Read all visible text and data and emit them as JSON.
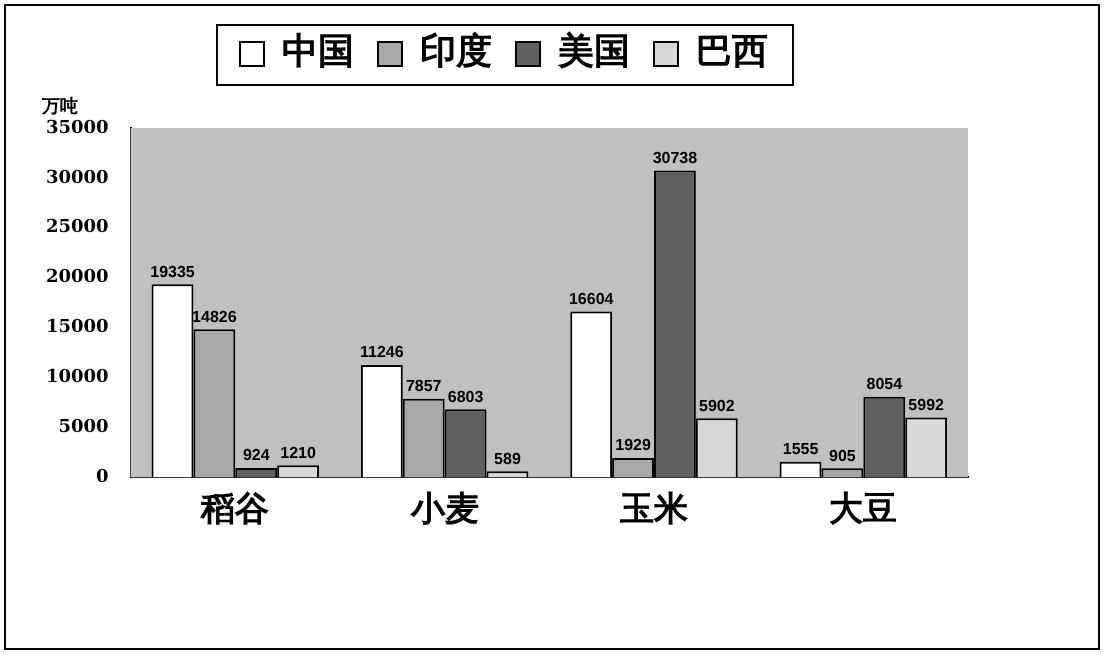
{
  "chart_data": {
    "type": "bar",
    "ylabel": "万吨",
    "categories": [
      "稻谷",
      "小麦",
      "玉米",
      "大豆"
    ],
    "series": [
      {
        "name": "中国",
        "color": "#ffffff",
        "values": [
          19335,
          11246,
          16604,
          1555
        ]
      },
      {
        "name": "印度",
        "color": "#a8a8a8",
        "values": [
          14826,
          7857,
          1929,
          905
        ]
      },
      {
        "name": "美国",
        "color": "#606060",
        "values": [
          924,
          6803,
          30738,
          8054
        ]
      },
      {
        "name": "巴西",
        "color": "#d8d8d8",
        "values": [
          1210,
          589,
          5902,
          5992
        ]
      }
    ],
    "ylim": [
      0,
      35000
    ],
    "yticks": [
      0,
      5000,
      10000,
      15000,
      20000,
      25000,
      30000,
      35000
    ],
    "grid": false,
    "legend": "top",
    "data_labels": true
  }
}
